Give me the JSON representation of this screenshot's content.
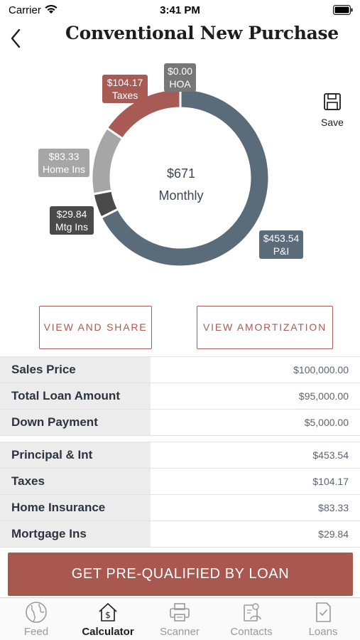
{
  "status_bar": {
    "carrier": "Carrier",
    "time": "3:41 PM"
  },
  "nav": {
    "title": "Conventional New Purchase"
  },
  "save": {
    "label": "Save"
  },
  "chart_data": {
    "type": "pie",
    "center_amount": "$671",
    "center_label": "Monthly",
    "series": [
      {
        "label": "P&I",
        "value_text": "$453.54",
        "value": 453.54,
        "color": "#5a6b7a"
      },
      {
        "label": "Mtg Ins",
        "value_text": "$29.84",
        "value": 29.84,
        "color": "#4a4a4a"
      },
      {
        "label": "Home Ins",
        "value_text": "$83.33",
        "value": 83.33,
        "color": "#a6a6a6"
      },
      {
        "label": "Taxes",
        "value_text": "$104.17",
        "value": 104.17,
        "color": "#a85a55"
      },
      {
        "label": "HOA",
        "value_text": "$0.00",
        "value": 0.0,
        "color": "#777777"
      }
    ]
  },
  "actions": {
    "view_share": "VIEW AND SHARE",
    "view_amortization": "VIEW AMORTIZATION"
  },
  "loan_rows": [
    {
      "label": "Sales Price",
      "value": "$100,000.00"
    },
    {
      "label": "Total Loan Amount",
      "value": "$95,000.00"
    },
    {
      "label": "Down Payment",
      "value": "$5,000.00"
    }
  ],
  "payment_rows": [
    {
      "label": "Principal & Int",
      "value": "$453.54"
    },
    {
      "label": "Taxes",
      "value": "$104.17"
    },
    {
      "label": "Home Insurance",
      "value": "$83.33"
    },
    {
      "label": "Mortgage Ins",
      "value": "$29.84"
    }
  ],
  "cta": {
    "label": "GET PRE-QUALIFIED BY LOAN"
  },
  "tabs": [
    {
      "label": "Feed",
      "icon": "globe-icon"
    },
    {
      "label": "Calculator",
      "icon": "house-dollar-icon"
    },
    {
      "label": "Scanner",
      "icon": "printer-icon"
    },
    {
      "label": "Contacts",
      "icon": "contact-card-icon"
    },
    {
      "label": "Loans",
      "icon": "document-check-icon"
    }
  ]
}
